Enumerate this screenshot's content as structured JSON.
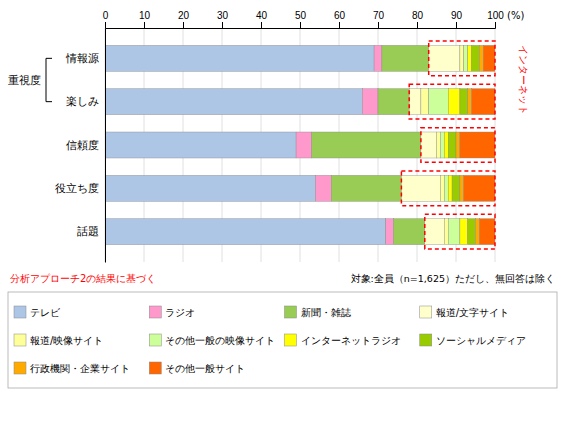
{
  "chart_data": {
    "type": "bar",
    "orientation": "horizontal",
    "stacked": true,
    "categories": [
      "情報源",
      "楽しみ",
      "信頼度",
      "役立ち度",
      "話題"
    ],
    "series": [
      {
        "name": "テレビ",
        "color": "#adc6e5",
        "values": [
          69,
          66,
          49,
          54,
          72
        ]
      },
      {
        "name": "ラジオ",
        "color": "#ff99cc",
        "values": [
          2,
          4,
          4,
          4,
          2
        ]
      },
      {
        "name": "新聞・雑誌",
        "color": "#99cc55",
        "values": [
          12,
          8,
          28,
          18,
          8
        ]
      },
      {
        "name": "報道/文字サイト",
        "color": "#ffffcc",
        "values": [
          8,
          3,
          4,
          10,
          5
        ]
      },
      {
        "name": "報道/映像サイト",
        "color": "#ffff99",
        "values": [
          1,
          2,
          1,
          1,
          1
        ]
      },
      {
        "name": "その他一般の映像サイト",
        "color": "#ccff99",
        "values": [
          1,
          5,
          1,
          1,
          3
        ]
      },
      {
        "name": "インターネットラジオ",
        "color": "#ffff00",
        "values": [
          1,
          3,
          1,
          1,
          2
        ]
      },
      {
        "name": "ソーシャルメディア",
        "color": "#99cc00",
        "values": [
          2,
          2,
          2,
          2,
          2
        ]
      },
      {
        "name": "行政機関・企業サイト",
        "color": "#ffaa00",
        "values": [
          1,
          1,
          1,
          1,
          1
        ]
      },
      {
        "name": "その他一般サイト",
        "color": "#ff6600",
        "values": [
          3,
          6,
          9,
          8,
          4
        ]
      }
    ],
    "xlim": [
      0,
      100
    ],
    "xticks": [
      0,
      10,
      20,
      30,
      40,
      50,
      60,
      70,
      80,
      90,
      100
    ],
    "grid": true,
    "legend": "bottom",
    "annotations": [
      "(%)",
      "重視度",
      "インターネット",
      "分析アプローチ2の結果に基づく",
      "対象:全員（n=1,625）ただし、無回答は除く"
    ]
  }
}
